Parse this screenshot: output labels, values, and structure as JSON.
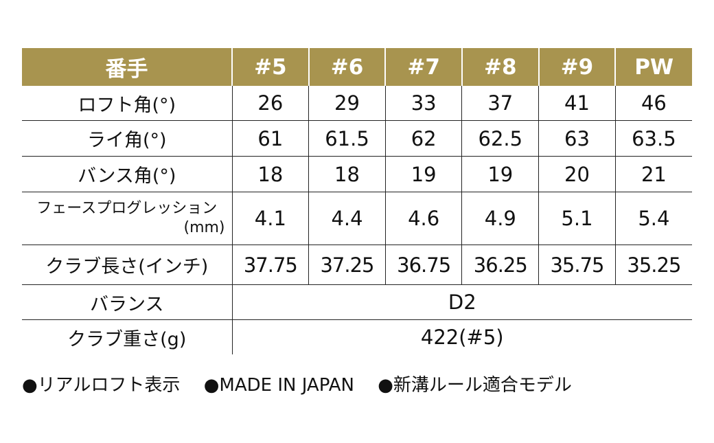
{
  "colors": {
    "header_bg": "#a8944f",
    "header_text": "#ffffff",
    "text": "#111111"
  },
  "table": {
    "header": [
      "番手",
      "#5",
      "#6",
      "#7",
      "#8",
      "#9",
      "PW"
    ],
    "rows": {
      "loft": {
        "label": "ロフト角(°)",
        "values": [
          "26",
          "29",
          "33",
          "37",
          "41",
          "46"
        ]
      },
      "lie": {
        "label": "ライ角(°)",
        "values": [
          "61",
          "61.5",
          "62",
          "62.5",
          "63",
          "63.5"
        ]
      },
      "bounce": {
        "label": "バンス角(°)",
        "values": [
          "18",
          "18",
          "19",
          "19",
          "20",
          "21"
        ]
      },
      "face_progression": {
        "label_line1": "フェースプログレッション",
        "label_line2": "(mm)",
        "values": [
          "4.1",
          "4.4",
          "4.6",
          "4.9",
          "5.1",
          "5.4"
        ]
      },
      "length": {
        "label": "クラブ長さ(インチ)",
        "values": [
          "37.75",
          "37.25",
          "36.75",
          "36.25",
          "35.75",
          "35.25"
        ]
      },
      "balance": {
        "label": "バランス",
        "value": "D2"
      },
      "weight": {
        "label": "クラブ重さ(g)",
        "value": "422(#5)"
      }
    }
  },
  "notes": [
    "●リアルロフト表示",
    "●MADE IN JAPAN",
    "●新溝ルール適合モデル"
  ]
}
